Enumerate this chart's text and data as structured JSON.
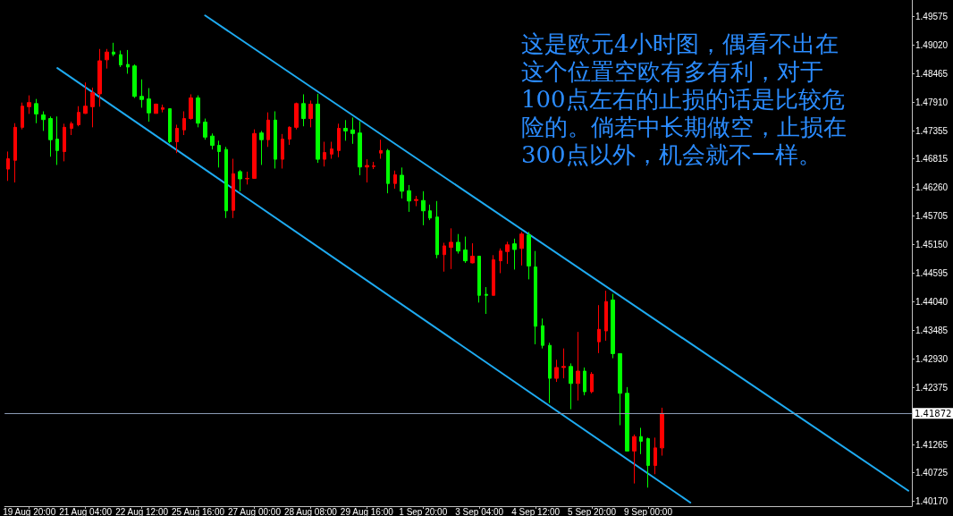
{
  "chart_data": {
    "type": "candlestick",
    "categories": [
      null,
      null,
      null,
      "19 Aug 20:00",
      null,
      null,
      null,
      null,
      null,
      null,
      null,
      "21 Aug 04:00",
      null,
      null,
      null,
      null,
      null,
      null,
      null,
      "22 Aug 12:00",
      null,
      null,
      null,
      null,
      null,
      null,
      null,
      "25 Aug 16:00",
      null,
      null,
      null,
      null,
      null,
      null,
      null,
      "27 Aug 00:00",
      null,
      null,
      null,
      null,
      null,
      null,
      null,
      "28 Aug 08:00",
      null,
      null,
      null,
      null,
      null,
      null,
      null,
      "29 Aug 16:00",
      null,
      null,
      null,
      null,
      null,
      null,
      null,
      "1 Sep 20:00",
      null,
      null,
      null,
      null,
      null,
      null,
      null,
      "3 Sep 04:00",
      null,
      null,
      null,
      null,
      null,
      null,
      null,
      "4 Sep 12:00",
      null,
      null,
      null,
      null,
      null,
      null,
      null,
      "5 Sep 20:00",
      null,
      null,
      null,
      null,
      null,
      null,
      null,
      "9 Sep 00:00",
      null,
      null,
      null,
      null,
      null,
      null,
      null,
      null,
      null,
      null,
      null,
      null,
      null,
      null,
      null,
      null,
      null,
      null,
      null,
      null,
      null,
      null,
      null,
      null,
      null,
      null,
      null,
      null,
      null,
      null,
      null,
      null,
      null,
      null,
      null,
      null,
      null
    ],
    "ohlc": [
      [
        1.4661,
        1.4695,
        1.4638,
        1.4681
      ],
      [
        1.4678,
        1.475,
        1.4635,
        1.4742
      ],
      [
        1.4742,
        1.479,
        1.4738,
        1.4783
      ],
      [
        1.4782,
        1.4804,
        1.4768,
        1.479
      ],
      [
        1.4788,
        1.4797,
        1.475,
        1.4768
      ],
      [
        1.4766,
        1.4773,
        1.4735,
        1.4757
      ],
      [
        1.4759,
        1.4763,
        1.4685,
        1.4718
      ],
      [
        1.4719,
        1.4763,
        1.4669,
        1.4697
      ],
      [
        1.4695,
        1.4749,
        1.4676,
        1.4742
      ],
      [
        1.474,
        1.4753,
        1.4727,
        1.4749
      ],
      [
        1.4747,
        1.4783,
        1.4744,
        1.4771
      ],
      [
        1.4769,
        1.4829,
        1.4768,
        1.4783
      ],
      [
        1.4782,
        1.4819,
        1.4742,
        1.4809
      ],
      [
        1.4807,
        1.4894,
        1.4782,
        1.4871
      ],
      [
        1.4873,
        1.4894,
        1.4856,
        1.4888
      ],
      [
        1.4888,
        1.4906,
        1.488,
        1.4884
      ],
      [
        1.4883,
        1.4891,
        1.4859,
        1.4863
      ],
      [
        1.4864,
        1.4892,
        1.4846,
        1.4859
      ],
      [
        1.4861,
        1.4864,
        1.4799,
        1.4802
      ],
      [
        1.4802,
        1.4835,
        1.478,
        1.4796
      ],
      [
        1.4797,
        1.4818,
        1.4753,
        1.477
      ],
      [
        1.4769,
        1.4788,
        1.4769,
        1.4787
      ],
      [
        1.4777,
        1.4786,
        1.4771,
        1.478
      ],
      [
        1.4778,
        1.4778,
        1.4711,
        1.4714
      ],
      [
        1.4714,
        1.4747,
        1.4692,
        1.474
      ],
      [
        1.4737,
        1.4773,
        1.4727,
        1.4759
      ],
      [
        1.4759,
        1.4806,
        1.4757,
        1.4799
      ],
      [
        1.4799,
        1.4804,
        1.4742,
        1.475
      ],
      [
        1.4752,
        1.4759,
        1.4718,
        1.4723
      ],
      [
        1.4725,
        1.473,
        1.4699,
        1.4707
      ],
      [
        1.4707,
        1.4716,
        1.4664,
        1.4695
      ],
      [
        1.4699,
        1.4704,
        1.4566,
        1.458
      ],
      [
        1.4581,
        1.4681,
        1.4566,
        1.4652
      ],
      [
        1.4656,
        1.4659,
        1.4618,
        1.4642
      ],
      [
        1.4642,
        1.4656,
        1.4631,
        1.4643
      ],
      [
        1.4643,
        1.4738,
        1.4643,
        1.473
      ],
      [
        1.4731,
        1.4735,
        1.4669,
        1.4718
      ],
      [
        1.4718,
        1.4771,
        1.4704,
        1.4756
      ],
      [
        1.4756,
        1.4773,
        1.4662,
        1.468
      ],
      [
        1.468,
        1.4729,
        1.4662,
        1.4719
      ],
      [
        1.4719,
        1.4744,
        1.4708,
        1.4742
      ],
      [
        1.4742,
        1.479,
        1.4738,
        1.4788
      ],
      [
        1.4788,
        1.4806,
        1.4744,
        1.4759
      ],
      [
        1.4759,
        1.4794,
        1.4742,
        1.4787
      ],
      [
        1.4787,
        1.4807,
        1.4673,
        1.468
      ],
      [
        1.468,
        1.4714,
        1.4666,
        1.4693
      ],
      [
        1.469,
        1.4714,
        1.4681,
        1.47
      ],
      [
        1.4697,
        1.4749,
        1.4684,
        1.474
      ],
      [
        1.474,
        1.4756,
        1.4716,
        1.4735
      ],
      [
        1.4737,
        1.4761,
        1.471,
        1.473
      ],
      [
        1.4731,
        1.4754,
        1.4649,
        1.4665
      ],
      [
        1.4665,
        1.468,
        1.4635,
        1.4668
      ],
      [
        1.4666,
        1.4675,
        1.4661,
        1.4667
      ],
      [
        1.4692,
        1.4718,
        1.4681,
        1.4697
      ],
      [
        1.4697,
        1.47,
        1.4614,
        1.4633
      ],
      [
        1.4633,
        1.4658,
        1.4623,
        1.465
      ],
      [
        1.4649,
        1.4664,
        1.4604,
        1.4618
      ],
      [
        1.4619,
        1.463,
        1.4578,
        1.4599
      ],
      [
        1.46,
        1.4609,
        1.4589,
        1.4602
      ],
      [
        1.46,
        1.4618,
        1.4552,
        1.458
      ],
      [
        1.458,
        1.4592,
        1.4562,
        1.4566
      ],
      [
        1.4568,
        1.4599,
        1.4488,
        1.4495
      ],
      [
        1.4495,
        1.4518,
        1.4462,
        1.4512
      ],
      [
        1.4509,
        1.4546,
        1.4467,
        1.4519
      ],
      [
        1.4519,
        1.4535,
        1.4497,
        1.4502
      ],
      [
        1.4504,
        1.453,
        1.4479,
        1.4483
      ],
      [
        1.4479,
        1.4517,
        1.4478,
        1.4492
      ],
      [
        1.4492,
        1.4492,
        1.4402,
        1.4416
      ],
      [
        1.4418,
        1.4432,
        1.438,
        1.4416
      ],
      [
        1.4416,
        1.4494,
        1.4416,
        1.4485
      ],
      [
        1.4483,
        1.4507,
        1.4459,
        1.4502
      ],
      [
        1.4501,
        1.452,
        1.4477,
        1.4514
      ],
      [
        1.4516,
        1.4526,
        1.4466,
        1.4505
      ],
      [
        1.4507,
        1.4539,
        1.4474,
        1.4535
      ],
      [
        1.4533,
        1.4539,
        1.4447,
        1.4473
      ],
      [
        1.4471,
        1.4502,
        1.4321,
        1.4356
      ],
      [
        1.4357,
        1.4371,
        1.4313,
        1.4319
      ],
      [
        1.4319,
        1.4324,
        1.4207,
        1.4255
      ],
      [
        1.4255,
        1.4291,
        1.4248,
        1.4276
      ],
      [
        1.4276,
        1.4313,
        1.4255,
        1.4278
      ],
      [
        1.4278,
        1.4284,
        1.4195,
        1.4245
      ],
      [
        1.4245,
        1.4345,
        1.4212,
        1.4269
      ],
      [
        1.4269,
        1.4276,
        1.4222,
        1.4229
      ],
      [
        1.4229,
        1.4267,
        1.4226,
        1.4263
      ],
      [
        1.4326,
        1.4397,
        1.4304,
        1.435
      ],
      [
        1.4347,
        1.4425,
        1.4328,
        1.4404
      ],
      [
        1.4407,
        1.4419,
        1.4294,
        1.4303
      ],
      [
        1.4303,
        1.4303,
        1.4164,
        1.4226
      ],
      [
        1.4226,
        1.4238,
        1.4114,
        1.4114
      ],
      [
        1.4114,
        1.4146,
        1.4051,
        1.4142
      ],
      [
        1.4142,
        1.4159,
        1.4108,
        1.4133
      ],
      [
        1.4138,
        1.414,
        1.4043,
        1.4086
      ],
      [
        1.4086,
        1.414,
        1.4069,
        1.412
      ],
      [
        1.412,
        1.4198,
        1.4105,
        1.4187
      ],
      null,
      null,
      null,
      null,
      null,
      null,
      null,
      null,
      null,
      null,
      null,
      null,
      null,
      null,
      null,
      null,
      null,
      null,
      null,
      null,
      null,
      null,
      null,
      null,
      null,
      null,
      null,
      null,
      null,
      null,
      null,
      null,
      null,
      null,
      null
    ],
    "colors": [
      "#ff0000",
      "#ff0000",
      "#ff0000",
      "#ff0000",
      "#00ff00",
      "#00ff00",
      "#00ff00",
      "#00ff00",
      "#ff0000",
      "#ff0000",
      "#ff0000",
      "#ff0000",
      "#ff0000",
      "#ff0000",
      "#ff0000",
      "#00ff00",
      "#00ff00",
      "#00ff00",
      "#00ff00",
      "#00ff00",
      "#00ff00",
      "#ff0000",
      "#ff0000",
      "#00ff00",
      "#ff0000",
      "#ff0000",
      "#ff0000",
      "#00ff00",
      "#00ff00",
      "#00ff00",
      "#00ff00",
      "#00ff00",
      "#ff0000",
      "#00ff00",
      "#ff0000",
      "#ff0000",
      "#00ff00",
      "#ff0000",
      "#00ff00",
      "#ff0000",
      "#ff0000",
      "#ff0000",
      "#00ff00",
      "#ff0000",
      "#00ff00",
      "#ff0000",
      "#ff0000",
      "#ff0000",
      "#00ff00",
      "#00ff00",
      "#00ff00",
      "#ff0000",
      "#ff0000",
      "#ff0000",
      "#00ff00",
      "#ff0000",
      "#00ff00",
      "#00ff00",
      "#ff0000",
      "#00ff00",
      "#00ff00",
      "#00ff00",
      "#ff0000",
      "#ff0000",
      "#00ff00",
      "#00ff00",
      "#ff0000",
      "#00ff00",
      "#00ff00",
      "#ff0000",
      "#ff0000",
      "#ff0000",
      "#00ff00",
      "#ff0000",
      "#00ff00",
      "#00ff00",
      "#00ff00",
      "#00ff00",
      "#ff0000",
      "#ff0000",
      "#00ff00",
      "#ff0000",
      "#00ff00",
      "#ff0000",
      "#ff0000",
      "#ff0000",
      "#00ff00",
      "#00ff00",
      "#00ff00",
      "#ff0000",
      "#00ff00",
      "#00ff00",
      "#ff0000",
      "#ff0000",
      null,
      null,
      null,
      null,
      null,
      null,
      null,
      null,
      null,
      null,
      null,
      null,
      null,
      null,
      null,
      null,
      null,
      null,
      null,
      null,
      null,
      null,
      null,
      null,
      null,
      null,
      null,
      null,
      null,
      null,
      null,
      null,
      null,
      null,
      null
    ],
    "series": [
      {
        "type": "line",
        "color": "#1eaaf0",
        "values": [
          null,
          null,
          null,
          null,
          null,
          null,
          null,
          null,
          null,
          null,
          null,
          null,
          null,
          null,
          null,
          null,
          null,
          null,
          null,
          null,
          null,
          null,
          null,
          null,
          null,
          null,
          null,
          null,
          1.4959,
          null,
          null,
          null,
          null,
          null,
          null,
          null,
          null,
          null,
          null,
          null,
          null,
          null,
          null,
          null,
          null,
          null,
          null,
          null,
          null,
          null,
          null,
          null,
          null,
          null,
          null,
          null,
          null,
          null,
          null,
          null,
          null,
          null,
          null,
          null,
          null,
          null,
          null,
          null,
          null,
          null,
          null,
          null,
          null,
          null,
          null,
          null,
          null,
          null,
          null,
          null,
          null,
          null,
          null,
          null,
          null,
          null,
          null,
          null,
          null,
          null,
          null,
          null,
          null,
          null,
          null,
          null,
          null,
          null,
          null,
          null,
          null,
          null,
          null,
          null,
          null,
          null,
          null,
          null,
          null,
          null,
          null,
          null,
          null,
          null,
          null,
          null,
          null,
          null,
          null,
          null,
          null,
          null,
          null,
          null,
          null,
          null,
          null,
          null,
          1.4037
        ]
      },
      {
        "type": "line",
        "color": "#1eaaf0",
        "values": [
          null,
          null,
          null,
          null,
          null,
          null,
          null,
          1.4857,
          null,
          null,
          null,
          null,
          null,
          null,
          null,
          null,
          null,
          null,
          null,
          null,
          null,
          null,
          null,
          null,
          null,
          null,
          null,
          null,
          null,
          null,
          null,
          null,
          null,
          null,
          null,
          null,
          null,
          null,
          null,
          null,
          null,
          null,
          null,
          null,
          null,
          null,
          null,
          null,
          null,
          null,
          null,
          null,
          null,
          null,
          null,
          null,
          null,
          null,
          null,
          null,
          null,
          null,
          null,
          null,
          null,
          null,
          null,
          null,
          null,
          null,
          null,
          null,
          null,
          null,
          null,
          null,
          null,
          null,
          null,
          null,
          null,
          null,
          null,
          null,
          null,
          null,
          null,
          null,
          null,
          null,
          null,
          null,
          null,
          null,
          null,
          null,
          null,
          1.4014,
          null,
          null,
          null,
          null,
          null,
          null,
          null,
          null,
          null,
          null,
          null,
          null,
          null,
          null,
          null,
          null,
          null,
          null,
          null,
          null,
          null,
          null,
          null,
          null,
          null,
          null,
          null,
          null,
          null,
          null,
          null
        ]
      }
    ],
    "marker": "none",
    "line_style": "solid",
    "ylim": [
      1.4007,
      1.4989
    ],
    "yticks": [
      1.49575,
      {
        "value": 1.4902,
        "label": "1.49020"
      },
      1.48465,
      {
        "value": 1.4791,
        "label": "1.47910"
      },
      1.47355,
      1.46815,
      {
        "value": 1.4626,
        "label": "1.46260"
      },
      1.45705,
      {
        "value": 1.4515,
        "label": "1.45150"
      },
      1.44595,
      {
        "value": 1.4404,
        "label": "1.44040"
      },
      1.43485,
      {
        "value": 1.4293,
        "label": "1.42930"
      },
      1.42375,
      1.41265,
      1.40725,
      {
        "value": 1.4017,
        "label": "1.40170"
      }
    ],
    "ref_lines": [
      {
        "axis": "y",
        "value": 1.41872,
        "label": "1.41872",
        "color": "#8a9ab4"
      }
    ],
    "annotations": [
      "这是欧元4小时图，偶看不出在这个位置空欧有多有利，对于100点左右的止损的话是比较危险的。倘若中长期做空，止损在300点以外，机会就不一样。"
    ]
  }
}
